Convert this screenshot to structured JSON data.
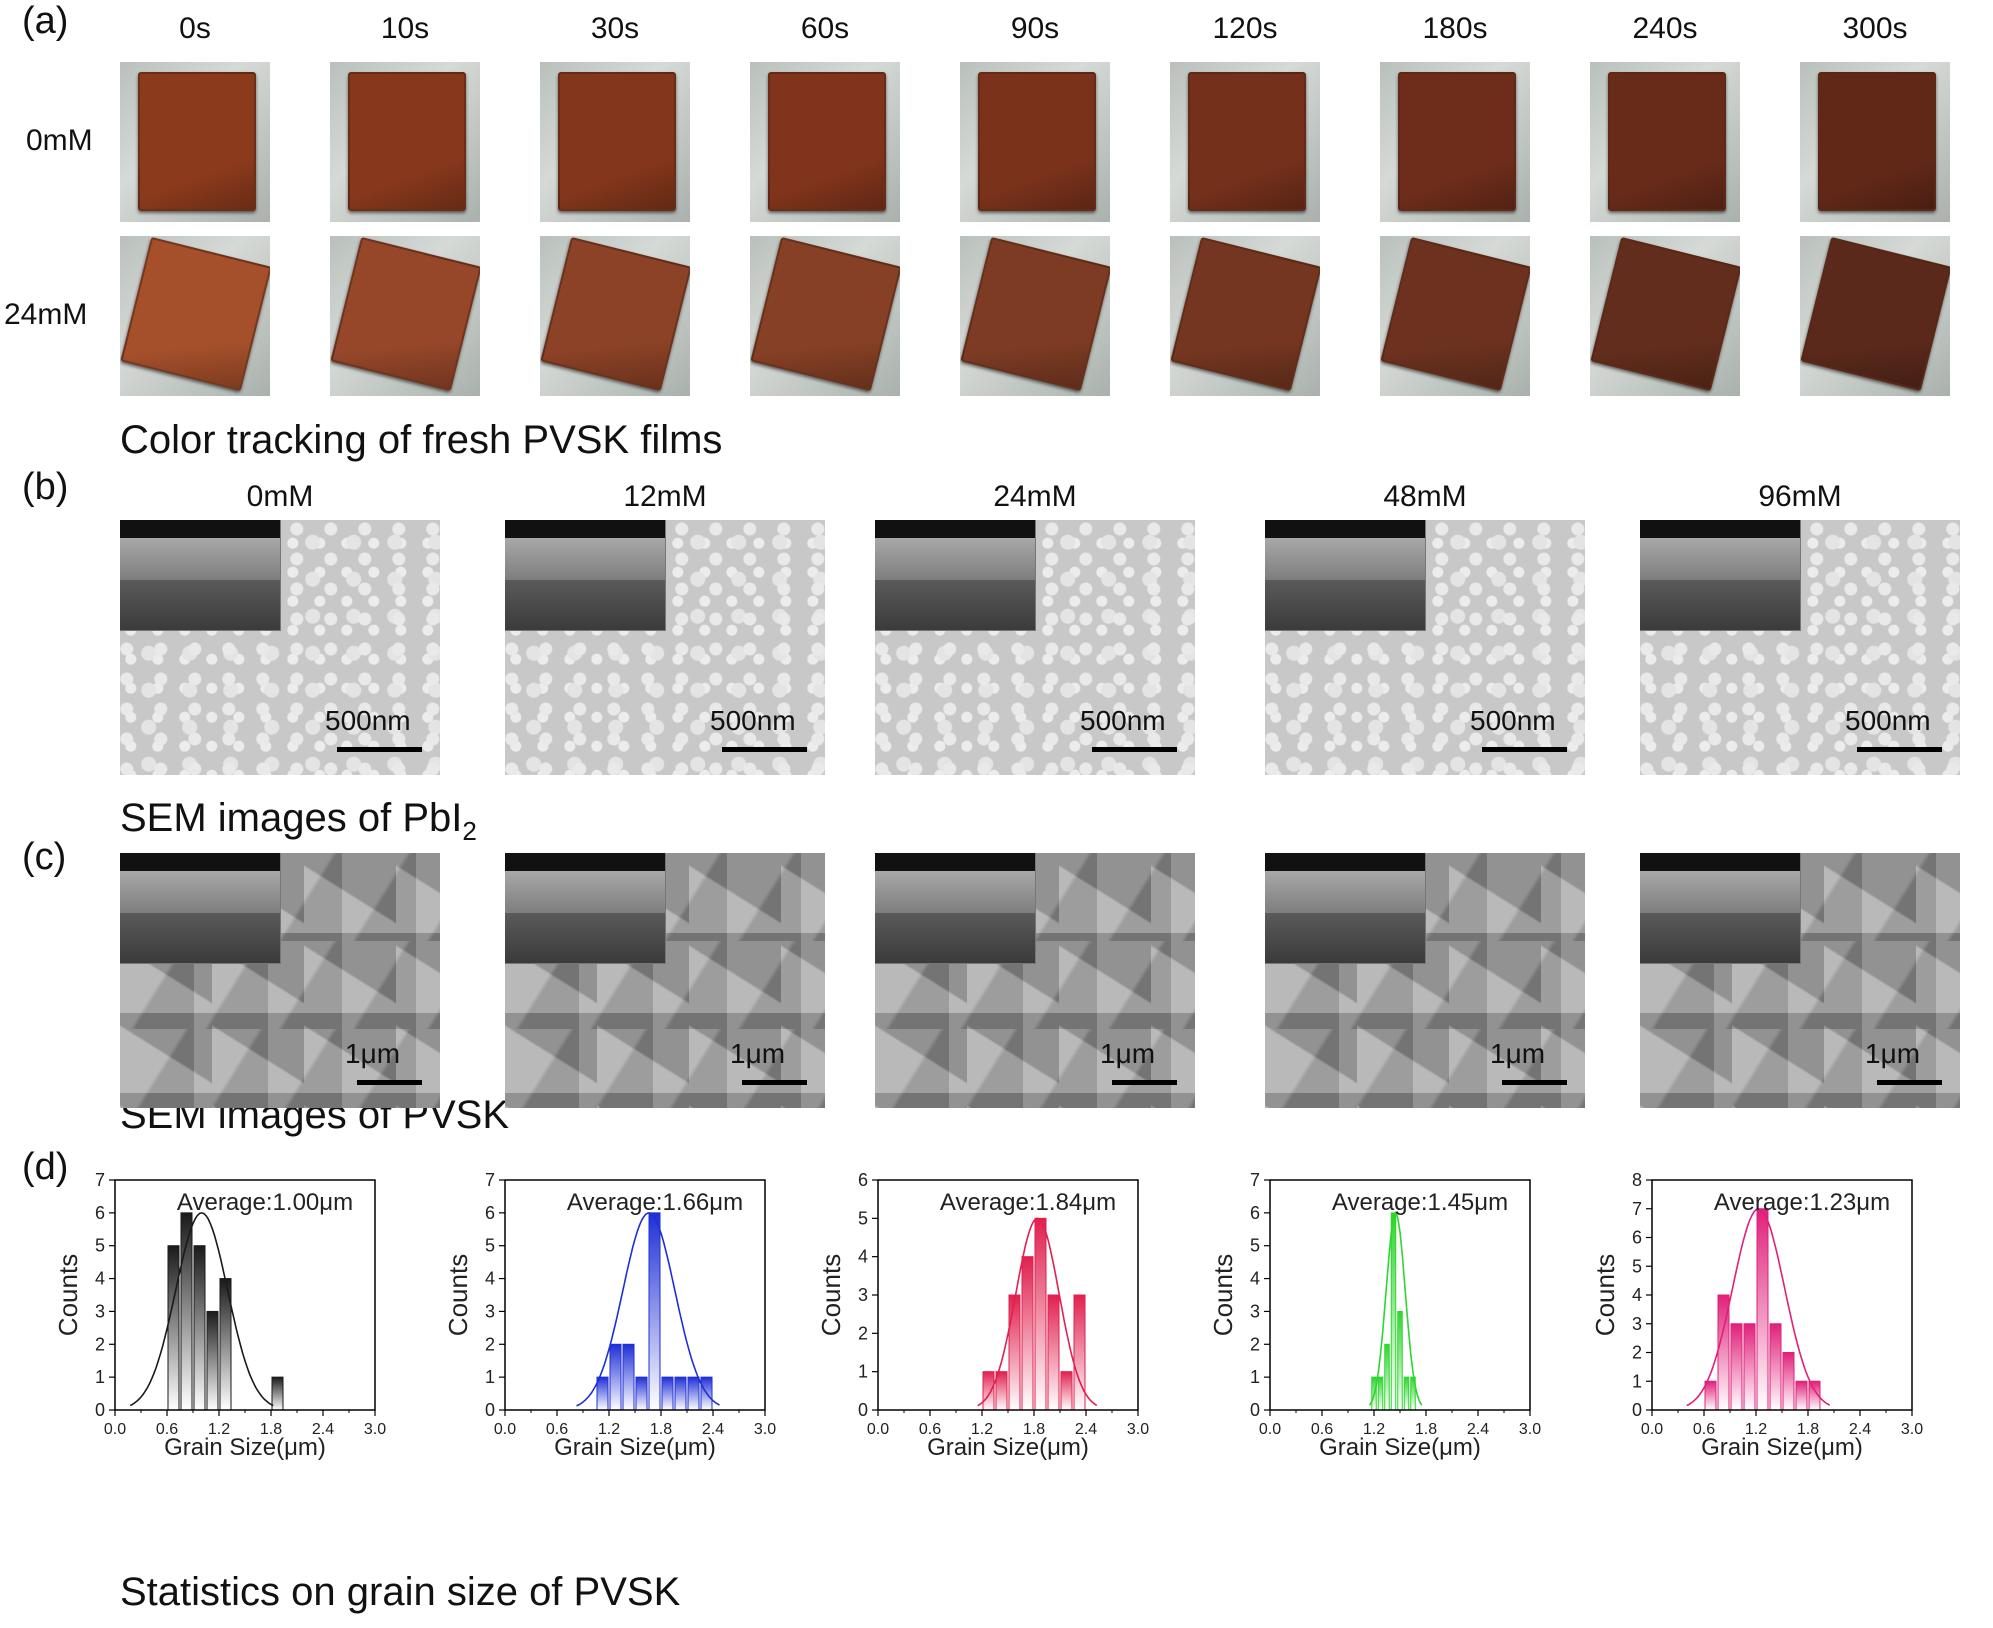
{
  "panel_a": {
    "label": "(a)",
    "times": [
      "0s",
      "10s",
      "30s",
      "60s",
      "90s",
      "120s",
      "180s",
      "240s",
      "300s"
    ],
    "rows": [
      "0mM",
      "24mM"
    ],
    "caption": "Color tracking of fresh PVSK films",
    "film_colors_0mM": [
      "#8c3a1c",
      "#87381c",
      "#83361b",
      "#80341b",
      "#7a321b",
      "#74301b",
      "#6e2d1b",
      "#682b1a",
      "#612818"
    ],
    "film_colors_24mM": [
      "#a6502b",
      "#96472a",
      "#8c4226",
      "#864025",
      "#7d3b23",
      "#743620",
      "#6c321f",
      "#622d1c",
      "#5a291b"
    ]
  },
  "panel_b": {
    "label": "(b)",
    "concentrations": [
      "0mM",
      "12mM",
      "24mM",
      "48mM",
      "96mM"
    ],
    "scale_label": "500nm",
    "caption_main": "SEM images of PbI",
    "caption_sub": "2"
  },
  "panel_c": {
    "label": "(c)",
    "scale_label": "1μm",
    "caption": "SEM images of PVSK"
  },
  "panel_d": {
    "label": "(d)",
    "caption": "Statistics on grain size of PVSK"
  },
  "chart_data": [
    {
      "type": "bar",
      "title": "Average:1.00μm",
      "xlabel": "Grain Size(μm)",
      "ylabel": "Counts",
      "xlim": [
        0,
        3.0
      ],
      "ylim": [
        0,
        7
      ],
      "xticks": [
        "0.0",
        "0.6",
        "1.2",
        "1.8",
        "2.4",
        "3.0"
      ],
      "yticks": [
        "0",
        "1",
        "2",
        "3",
        "4",
        "5",
        "6",
        "7"
      ],
      "bin_width": 0.15,
      "x": [
        0.675,
        0.825,
        0.975,
        1.125,
        1.275,
        1.875
      ],
      "values": [
        5,
        6,
        5,
        3,
        4,
        1
      ],
      "fit": {
        "mean": 1.0,
        "sigma": 0.3,
        "peak": 6
      },
      "color": "#1a1a1a"
    },
    {
      "type": "bar",
      "title": "Average:1.66μm",
      "xlabel": "Grain Size(μm)",
      "ylabel": "Counts",
      "xlim": [
        0,
        3.0
      ],
      "ylim": [
        0,
        7
      ],
      "xticks": [
        "0.0",
        "0.6",
        "1.2",
        "1.8",
        "2.4",
        "3.0"
      ],
      "yticks": [
        "0",
        "1",
        "2",
        "3",
        "4",
        "5",
        "6",
        "7"
      ],
      "bin_width": 0.15,
      "x": [
        1.125,
        1.275,
        1.425,
        1.575,
        1.725,
        1.875,
        2.025,
        2.175,
        2.325
      ],
      "values": [
        1,
        2,
        2,
        1,
        6,
        1,
        1,
        1,
        1
      ],
      "fit": {
        "mean": 1.66,
        "sigma": 0.3,
        "peak": 6
      },
      "color": "#1f2fd6"
    },
    {
      "type": "bar",
      "title": "Average:1.84μm",
      "xlabel": "Grain Size(μm)",
      "ylabel": "Counts",
      "xlim": [
        0,
        3.0
      ],
      "ylim": [
        0,
        6
      ],
      "xticks": [
        "0.0",
        "0.6",
        "1.2",
        "1.8",
        "2.4",
        "3.0"
      ],
      "yticks": [
        "0",
        "1",
        "2",
        "3",
        "4",
        "5",
        "6"
      ],
      "bin_width": 0.15,
      "x": [
        1.275,
        1.425,
        1.575,
        1.725,
        1.875,
        2.025,
        2.175,
        2.325
      ],
      "values": [
        1,
        1,
        3,
        4,
        5,
        3,
        1,
        3
      ],
      "fit": {
        "mean": 1.84,
        "sigma": 0.25,
        "peak": 5
      },
      "color": "#e0204f"
    },
    {
      "type": "bar",
      "title": "Average:1.45μm",
      "xlabel": "Grain Size(μm)",
      "ylabel": "Counts",
      "xlim": [
        0,
        3.0
      ],
      "ylim": [
        0,
        7
      ],
      "xticks": [
        "0.0",
        "0.6",
        "1.2",
        "1.8",
        "2.4",
        "3.0"
      ],
      "yticks": [
        "0",
        "1",
        "2",
        "3",
        "4",
        "5",
        "6",
        "7"
      ],
      "bin_width": 0.075,
      "x": [
        1.2,
        1.275,
        1.35,
        1.425,
        1.5,
        1.575,
        1.65
      ],
      "values": [
        1,
        1,
        2,
        6,
        3,
        1,
        1
      ],
      "fit": {
        "mean": 1.45,
        "sigma": 0.11,
        "peak": 6
      },
      "color": "#2fd62f"
    },
    {
      "type": "bar",
      "title": "Average:1.23μm",
      "xlabel": "Grain Size(μm)",
      "ylabel": "Counts",
      "xlim": [
        0,
        3.0
      ],
      "ylim": [
        0,
        8
      ],
      "xticks": [
        "0.0",
        "0.6",
        "1.2",
        "1.8",
        "2.4",
        "3.0"
      ],
      "yticks": [
        "0",
        "1",
        "2",
        "3",
        "4",
        "5",
        "6",
        "7",
        "8"
      ],
      "bin_width": 0.15,
      "x": [
        0.675,
        0.825,
        0.975,
        1.125,
        1.275,
        1.425,
        1.575,
        1.725,
        1.875
      ],
      "values": [
        1,
        4,
        3,
        3,
        7,
        3,
        2,
        1,
        1
      ],
      "fit": {
        "mean": 1.23,
        "sigma": 0.3,
        "peak": 7
      },
      "color": "#e0207a"
    }
  ]
}
